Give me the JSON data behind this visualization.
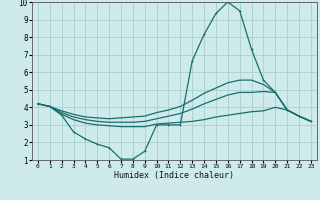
{
  "xlabel": "Humidex (Indice chaleur)",
  "bg_color": "#ceeaea",
  "grid_color": "#aacece",
  "line_color": "#1a6e6e",
  "xlim": [
    -0.5,
    23.5
  ],
  "ylim": [
    1,
    10
  ],
  "xticks": [
    0,
    1,
    2,
    3,
    4,
    5,
    6,
    7,
    8,
    9,
    10,
    11,
    12,
    13,
    14,
    15,
    16,
    17,
    18,
    19,
    20,
    21,
    22,
    23
  ],
  "yticks": [
    1,
    2,
    3,
    4,
    5,
    6,
    7,
    8,
    9,
    10
  ],
  "curve_main_x": [
    0,
    1,
    2,
    3,
    4,
    5,
    6,
    7,
    8,
    9,
    10,
    11,
    12,
    13,
    14,
    15,
    16,
    17,
    18,
    19,
    20,
    21,
    22,
    23
  ],
  "curve_main_y": [
    4.2,
    4.05,
    3.55,
    2.6,
    2.2,
    1.9,
    1.7,
    1.05,
    1.05,
    1.5,
    3.0,
    3.0,
    3.0,
    6.65,
    8.15,
    9.35,
    10.0,
    9.5,
    7.3,
    5.55,
    4.85,
    3.85,
    3.5,
    3.2
  ],
  "curve_upper_x": [
    0,
    1,
    2,
    3,
    4,
    5,
    6,
    7,
    8,
    9,
    10,
    11,
    12,
    13,
    14,
    15,
    16,
    17,
    18,
    19,
    20,
    21,
    22,
    23
  ],
  "curve_upper_y": [
    4.2,
    4.05,
    3.8,
    3.6,
    3.45,
    3.4,
    3.35,
    3.4,
    3.45,
    3.5,
    3.7,
    3.85,
    4.05,
    4.4,
    4.8,
    5.1,
    5.4,
    5.55,
    5.55,
    5.3,
    4.85,
    3.85,
    3.5,
    3.2
  ],
  "curve_mid_x": [
    0,
    1,
    2,
    3,
    4,
    5,
    6,
    7,
    8,
    9,
    10,
    11,
    12,
    13,
    14,
    15,
    16,
    17,
    18,
    19,
    20,
    21,
    22,
    23
  ],
  "curve_mid_y": [
    4.2,
    4.05,
    3.7,
    3.45,
    3.3,
    3.2,
    3.15,
    3.15,
    3.15,
    3.2,
    3.35,
    3.5,
    3.65,
    3.9,
    4.2,
    4.45,
    4.7,
    4.85,
    4.85,
    4.9,
    4.85,
    3.85,
    3.5,
    3.2
  ],
  "curve_low_x": [
    0,
    1,
    2,
    3,
    4,
    5,
    6,
    7,
    8,
    9,
    10,
    11,
    12,
    13,
    14,
    15,
    16,
    17,
    18,
    19,
    20,
    21,
    22,
    23
  ],
  "curve_low_y": [
    4.2,
    4.05,
    3.6,
    3.3,
    3.1,
    3.0,
    2.95,
    2.9,
    2.9,
    2.9,
    3.05,
    3.1,
    3.15,
    3.2,
    3.3,
    3.45,
    3.55,
    3.65,
    3.75,
    3.8,
    4.0,
    3.85,
    3.5,
    3.2
  ]
}
